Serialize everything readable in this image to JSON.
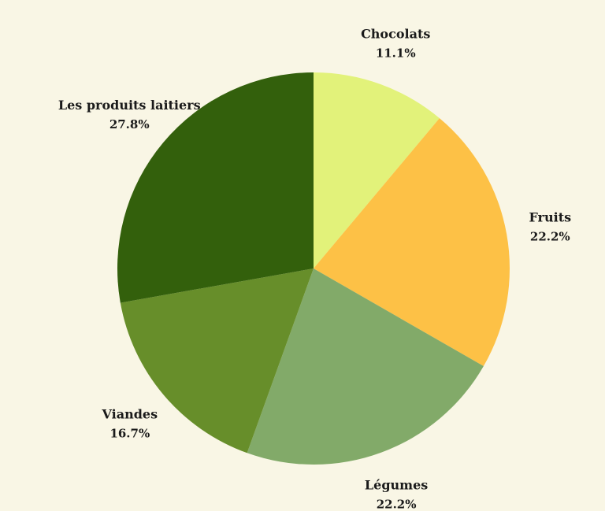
{
  "chart_data": {
    "type": "pie",
    "title": "",
    "start_angle_deg": 0,
    "direction": "clockwise",
    "slices": [
      {
        "label": "Chocolats",
        "value": 11.1,
        "pct_label": "11.1%",
        "color": "#e2f27a"
      },
      {
        "label": "Fruits",
        "value": 22.2,
        "pct_label": "22.2%",
        "color": "#fdc146"
      },
      {
        "label": "Légumes",
        "value": 22.2,
        "pct_label": "22.2%",
        "color": "#82aa69"
      },
      {
        "label": "Viandes",
        "value": 16.7,
        "pct_label": "16.7%",
        "color": "#678e2a"
      },
      {
        "label": "Les produits laitiers",
        "value": 27.8,
        "pct_label": "27.8%",
        "color": "#33600c"
      }
    ]
  },
  "background_color": "#f9f6e5"
}
